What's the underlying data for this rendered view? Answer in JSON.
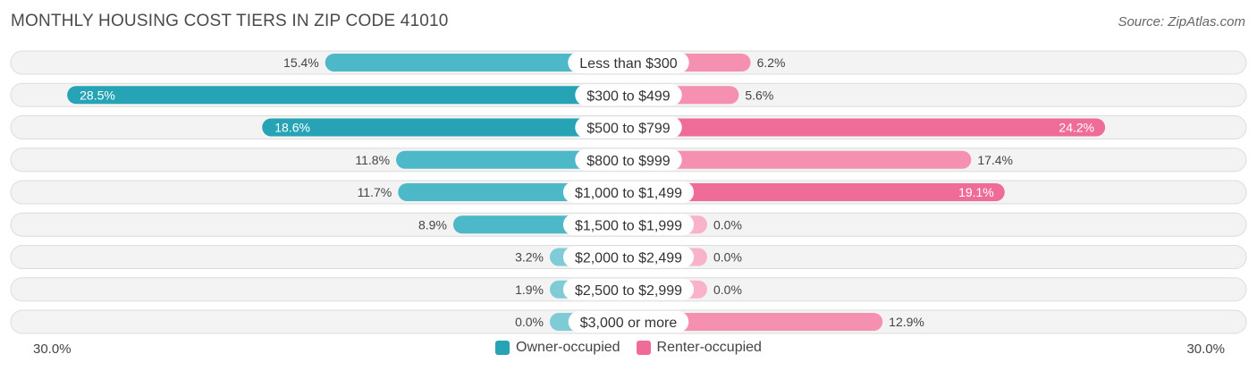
{
  "title": "MONTHLY HOUSING COST TIERS IN ZIP CODE 41010",
  "source": "Source: ZipAtlas.com",
  "colors": {
    "owner": "#4db8c7",
    "owner_strong": "#27a3b6",
    "renter": "#f590b0",
    "renter_strong": "#f06c98",
    "row_bg": "#f0f0f0",
    "row_border": "#dcdcdc"
  },
  "chart_data": {
    "type": "bar",
    "orientation": "horizontal-diverging",
    "title": "MONTHLY HOUSING COST TIERS IN ZIP CODE 41010",
    "categories": [
      "Less than $300",
      "$300 to $499",
      "$500 to $799",
      "$800 to $999",
      "$1,000 to $1,499",
      "$1,500 to $1,999",
      "$2,000 to $2,499",
      "$2,500 to $2,999",
      "$3,000 or more"
    ],
    "series": [
      {
        "name": "Owner-occupied",
        "values": [
          15.4,
          28.5,
          18.6,
          11.8,
          11.7,
          8.9,
          3.2,
          1.9,
          0.0
        ],
        "labels": [
          "15.4%",
          "28.5%",
          "18.6%",
          "11.8%",
          "11.7%",
          "8.9%",
          "3.2%",
          "1.9%",
          "0.0%"
        ]
      },
      {
        "name": "Renter-occupied",
        "values": [
          6.2,
          5.6,
          24.2,
          17.4,
          19.1,
          0.0,
          0.0,
          0.0,
          12.9
        ],
        "labels": [
          "6.2%",
          "5.6%",
          "24.2%",
          "17.4%",
          "19.1%",
          "0.0%",
          "0.0%",
          "0.0%",
          "12.9%"
        ]
      }
    ],
    "xlim": [
      -30,
      30
    ],
    "axis_labels": {
      "left": "30.0%",
      "right": "30.0%"
    },
    "legend": {
      "position": "bottom-center",
      "entries": [
        "Owner-occupied",
        "Renter-occupied"
      ]
    }
  }
}
